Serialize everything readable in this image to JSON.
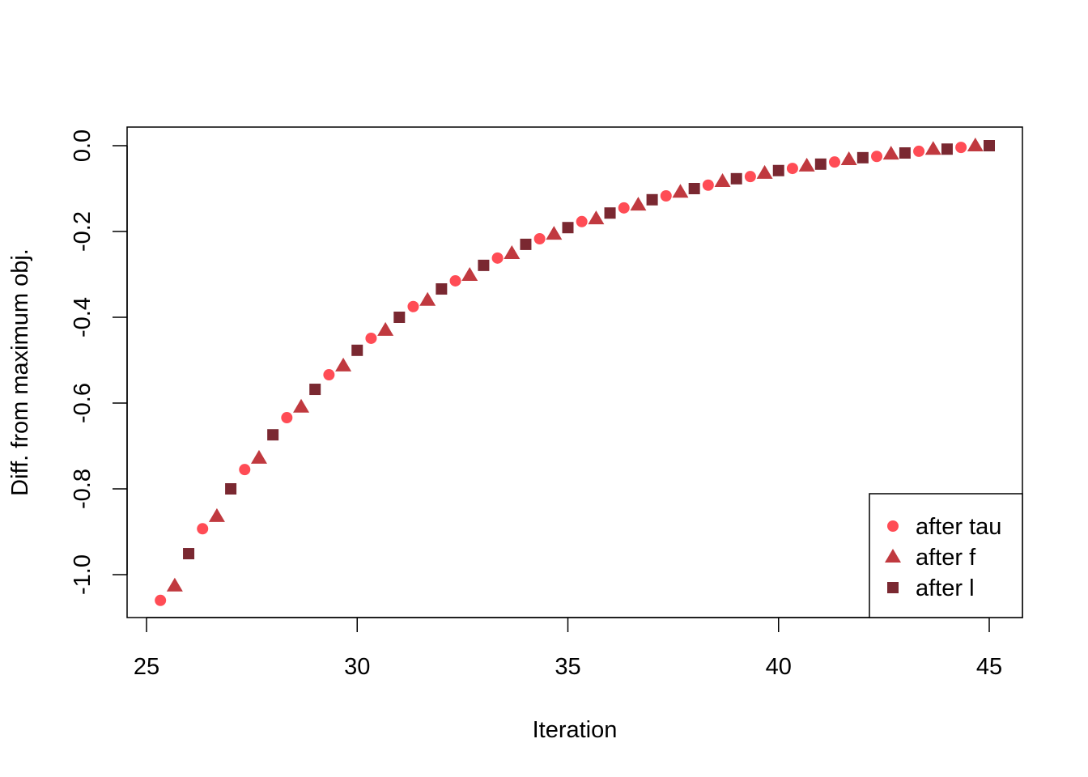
{
  "chart_data": {
    "type": "scatter",
    "title": "",
    "xlabel": "Iteration",
    "ylabel": "Diff. from maximum obj.",
    "xlim": [
      24.6,
      45.8
    ],
    "ylim": [
      -1.1,
      0.04
    ],
    "xticks": [
      25,
      30,
      35,
      40,
      45
    ],
    "xtick_labels": [
      "25",
      "30",
      "35",
      "40",
      "45"
    ],
    "yticks": [
      0.0,
      -0.2,
      -0.4,
      -0.6,
      -0.8,
      -1.0
    ],
    "ytick_labels": [
      "0.0",
      "-0.2",
      "-0.4",
      "-0.6",
      "-0.8",
      "-1.0"
    ],
    "grid": false,
    "legend_placement": "bottom-right",
    "series": [
      {
        "name": "after tau",
        "marker": "circle",
        "color": "#FF4C55",
        "x": [
          25.33,
          26.33,
          27.33,
          28.33,
          29.33,
          30.33,
          31.33,
          32.33,
          33.33,
          34.33,
          35.33,
          36.33,
          37.33,
          38.33,
          39.33,
          40.33,
          41.33,
          42.33,
          43.33,
          44.33
        ],
        "y": [
          -1.06,
          -0.893,
          -0.755,
          -0.634,
          -0.534,
          -0.449,
          -0.375,
          -0.315,
          -0.262,
          -0.217,
          -0.177,
          -0.145,
          -0.117,
          -0.092,
          -0.072,
          -0.053,
          -0.038,
          -0.025,
          -0.013,
          -0.004
        ]
      },
      {
        "name": "after f",
        "marker": "triangle",
        "color": "#C0393F",
        "x": [
          25.67,
          26.67,
          27.67,
          28.67,
          29.67,
          30.67,
          31.67,
          32.67,
          33.67,
          34.67,
          35.67,
          36.67,
          37.67,
          38.67,
          39.67,
          40.67,
          41.67,
          42.67,
          43.67,
          44.67
        ],
        "y": [
          -1.026,
          -0.864,
          -0.728,
          -0.609,
          -0.513,
          -0.43,
          -0.36,
          -0.302,
          -0.251,
          -0.206,
          -0.17,
          -0.138,
          -0.108,
          -0.083,
          -0.064,
          -0.047,
          -0.032,
          -0.019,
          -0.008,
          0.0
        ]
      },
      {
        "name": "after l",
        "marker": "square",
        "color": "#7A2831",
        "x": [
          26,
          27,
          28,
          29,
          30,
          31,
          32,
          33,
          34,
          35,
          36,
          37,
          38,
          39,
          40,
          41,
          42,
          43,
          44,
          45
        ],
        "y": [
          -0.951,
          -0.8,
          -0.674,
          -0.568,
          -0.477,
          -0.4,
          -0.334,
          -0.279,
          -0.23,
          -0.191,
          -0.157,
          -0.126,
          -0.1,
          -0.077,
          -0.058,
          -0.043,
          -0.028,
          -0.017,
          -0.008,
          0.0
        ]
      }
    ]
  }
}
